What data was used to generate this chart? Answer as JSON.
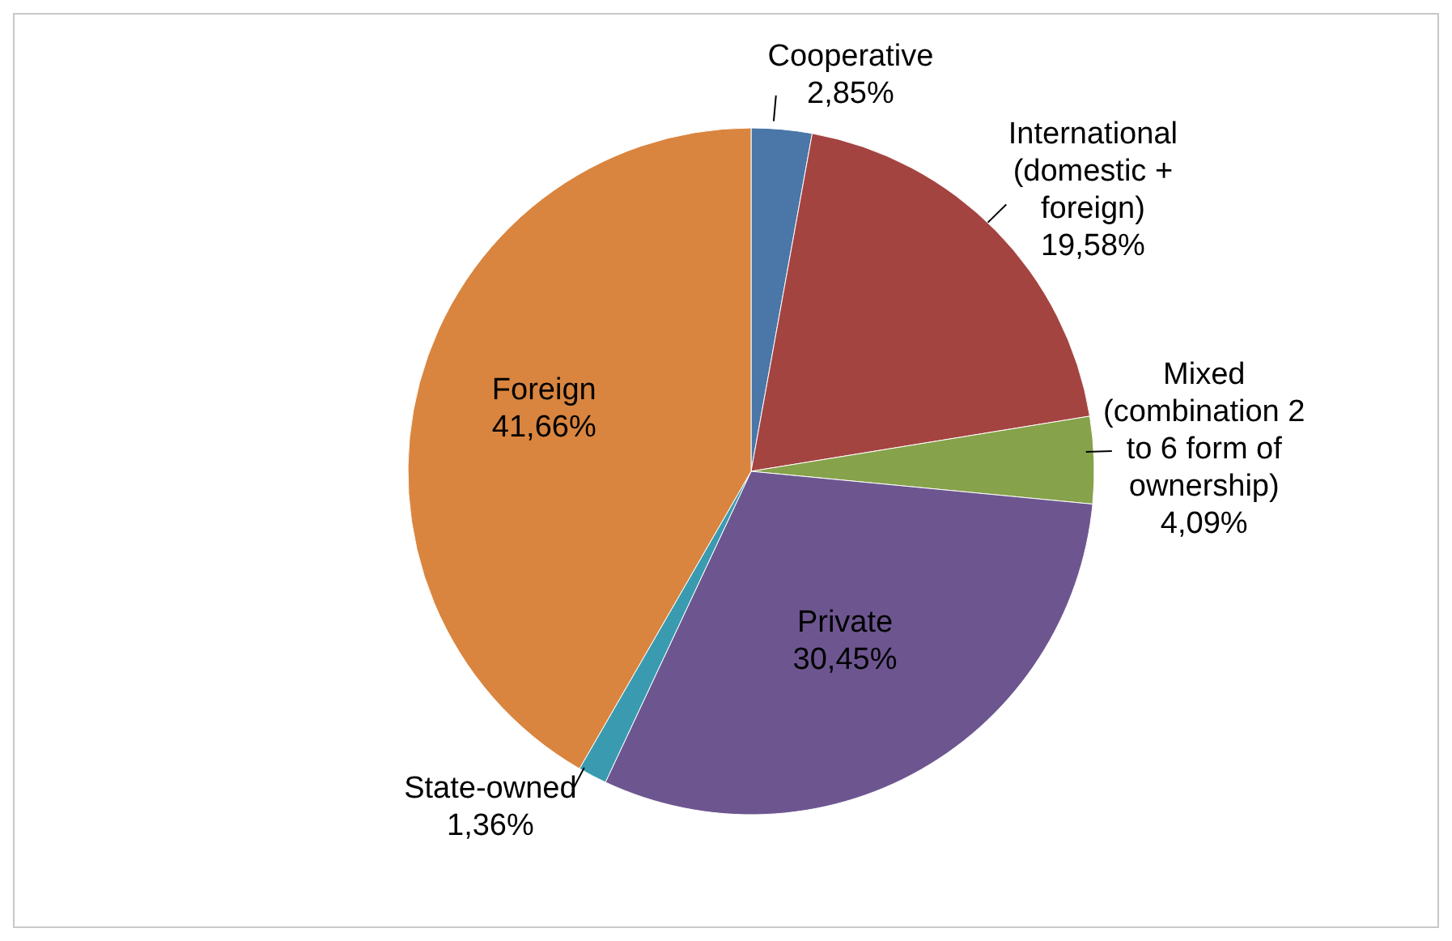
{
  "chart_data": {
    "type": "pie",
    "categories": [
      "Cooperative",
      "International (domestic + foreign)",
      "Mixed (combination 2 to 6 form of ownership)",
      "Private",
      "State-owned",
      "Foreign"
    ],
    "values": [
      2.85,
      19.58,
      4.09,
      30.45,
      1.36,
      41.66
    ],
    "value_labels": [
      "2,85%",
      "19,58%",
      "4,09%",
      "30,45%",
      "1,36%",
      "41,66%"
    ],
    "colors": [
      "#4a76a8",
      "#a44441",
      "#86a24a",
      "#6d5690",
      "#3a9bb0",
      "#d9853f"
    ],
    "legend": false
  }
}
